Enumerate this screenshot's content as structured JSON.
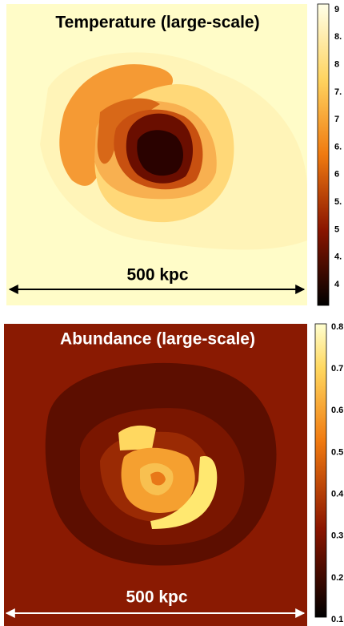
{
  "panels": [
    {
      "title": "Temperature (large-scale)",
      "scale_label": "500 kpc",
      "colorbar_labels": [
        "9",
        "8.",
        "8",
        "7.",
        "7",
        "6.",
        "6",
        "5.",
        "5",
        "4.",
        "4"
      ]
    },
    {
      "title": "Abundance (large-scale)",
      "scale_label": "500 kpc",
      "colorbar_labels": [
        "0.8",
        "0.7",
        "0.6",
        "0.5",
        "0.4",
        "0.3",
        "0.2",
        "0.1"
      ]
    }
  ]
}
